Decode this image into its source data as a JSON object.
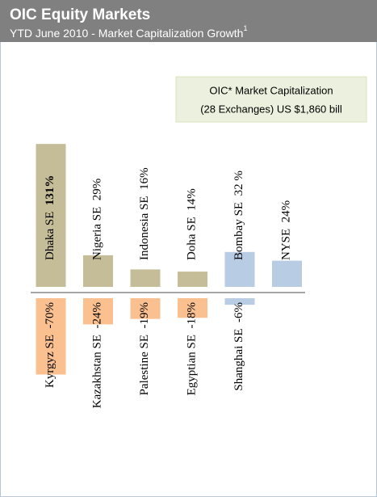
{
  "chart_data": {
    "type": "bar",
    "title": "OIC Equity Markets",
    "subtitle": "YTD June 2010  - Market Capitalization Growth",
    "subtitle_note": "1",
    "annotation": [
      "OIC* Market Capitalization",
      "(28 Exchanges) US $1,860 bill"
    ],
    "gainers": {
      "categories": [
        "Dhaka SE",
        "Nigeria SE",
        "Indonesia SE",
        "Doha SE",
        "Bombay SE",
        "NYSE"
      ],
      "values": [
        131,
        29,
        16,
        14,
        32,
        24
      ],
      "value_labels": [
        "131%",
        "29%",
        "16%",
        "14%",
        "32 %",
        "24%"
      ],
      "colors": [
        "#c4bd97",
        "#c4bd97",
        "#c4bd97",
        "#c4bd97",
        "#b8cce4",
        "#b8cce4"
      ]
    },
    "losers": {
      "categories": [
        "Kyrgyz SE",
        "Kazakhstan SE",
        "Palestine SE",
        "Egyptian SE",
        "Shanghai SE"
      ],
      "values": [
        -70,
        -24,
        -19,
        -18,
        -6
      ],
      "value_labels": [
        "-70%",
        "-24%",
        "-19%",
        "-18%",
        "-6%"
      ],
      "colors": [
        "#fac090",
        "#fac090",
        "#fac090",
        "#fac090",
        "#b8cce4"
      ]
    }
  }
}
